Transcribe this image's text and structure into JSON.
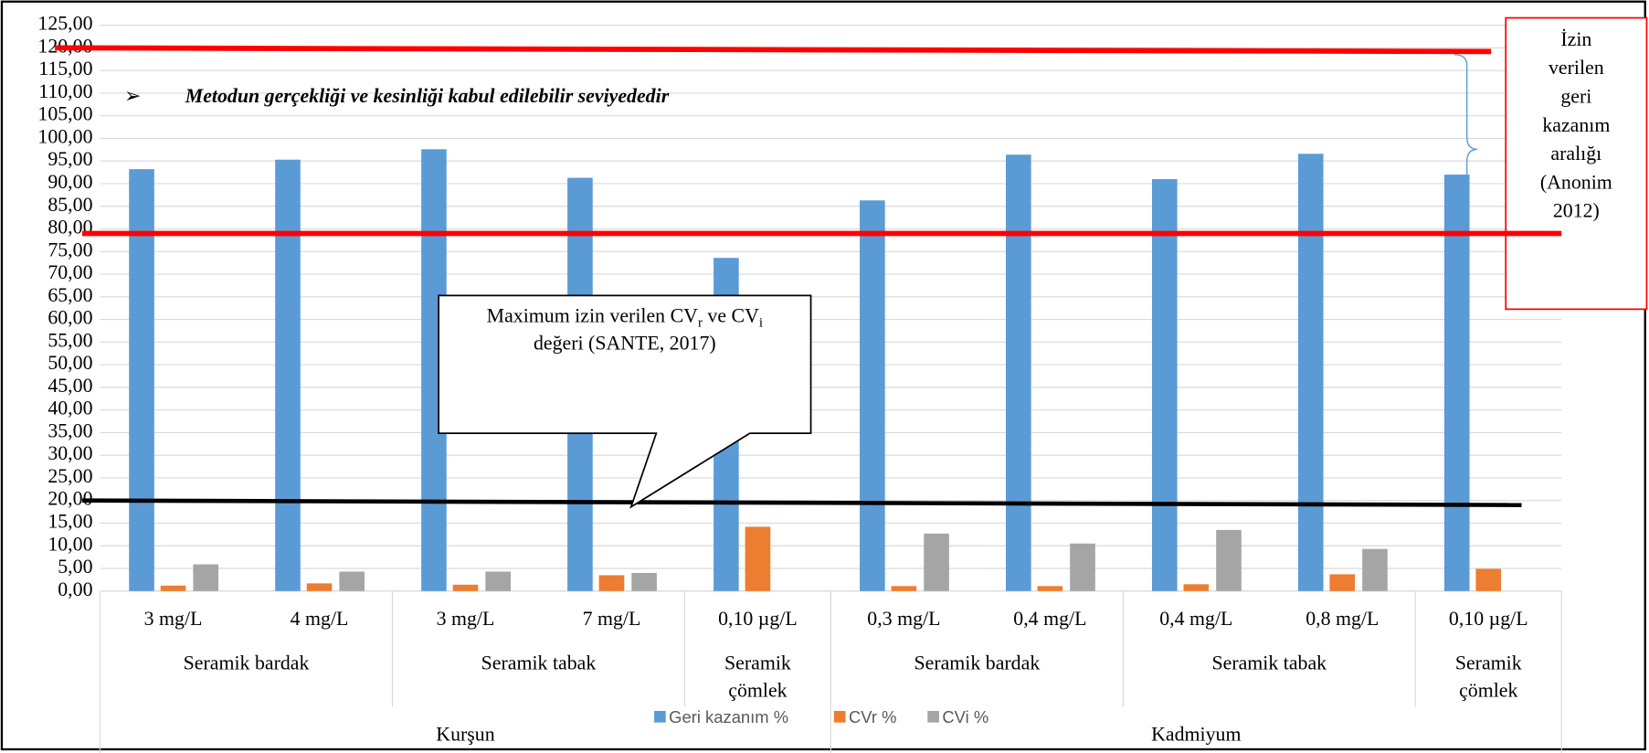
{
  "chart_data": {
    "type": "bar",
    "bullet": "➢",
    "subtitle": "Metodun gerçekliği ve kesinliği kabul edilebilir seviyededir",
    "callout": [
      [
        "Maximum izin verilen CV",
        {
          "sub": "r"
        },
        " ve CV",
        {
          "sub": "i"
        }
      ],
      [
        "değeri  (SANTE, 2017)"
      ]
    ],
    "side_note": [
      "İzin",
      "verilen",
      "geri",
      "kazanım",
      "aralığı",
      "(Anonim",
      "2012)"
    ],
    "category_groups": [
      {
        "name": "Kurşun",
        "groups": [
          {
            "name": "Seramik bardak",
            "categories": [
              "3 mg/L",
              "4 mg/L"
            ]
          },
          {
            "name": "Seramik tabak",
            "categories": [
              "3 mg/L",
              "7 mg/L"
            ]
          },
          {
            "name": "Seramik çömlek",
            "categories": [
              "0,10 µg/L"
            ]
          }
        ]
      },
      {
        "name": "Kadmiyum",
        "groups": [
          {
            "name": "Seramik bardak",
            "categories": [
              "0,3 mg/L",
              "0,4 mg/L"
            ]
          },
          {
            "name": "Seramik tabak",
            "categories": [
              "0,4 mg/L",
              "0,8 mg/L"
            ]
          },
          {
            "name": "Seramik çömlek",
            "categories": [
              "0,10 µg/L"
            ]
          }
        ]
      }
    ],
    "series": [
      {
        "name": "Geri kazanım %",
        "color": "#5b9bd5",
        "values": [
          93.2,
          95.3,
          97.6,
          91.3,
          73.6,
          86.3,
          96.4,
          91.0,
          96.6,
          92.0
        ]
      },
      {
        "name": "CVr %",
        "color": "#ed7d31",
        "values": [
          1.2,
          1.7,
          1.4,
          3.5,
          14.2,
          1.1,
          1.1,
          1.5,
          3.7,
          4.9
        ]
      },
      {
        "name": "CVi %",
        "color": "#a5a5a5",
        "values": [
          5.9,
          4.3,
          4.3,
          4.0,
          null,
          12.7,
          10.5,
          13.5,
          9.3,
          null
        ]
      }
    ],
    "reference_lines": [
      {
        "color": "#ff0000",
        "values": [
          120,
          119.2
        ]
      },
      {
        "color": "#ff0000",
        "values": [
          79,
          79
        ]
      },
      {
        "color": "#000000",
        "values": [
          20,
          19
        ]
      }
    ],
    "ylim": [
      0,
      125
    ],
    "yticks": [
      {
        "value": 0,
        "label": "0,00"
      },
      {
        "value": 5,
        "label": "5,00"
      },
      {
        "value": 10,
        "label": "10,00"
      },
      {
        "value": 15,
        "label": "15,00"
      },
      {
        "value": 20,
        "label": "20,00"
      },
      {
        "value": 25,
        "label": "25,00"
      },
      {
        "value": 30,
        "label": "30,00"
      },
      {
        "value": 35,
        "label": "35,00"
      },
      {
        "value": 40,
        "label": "40,00"
      },
      {
        "value": 45,
        "label": "45,00"
      },
      {
        "value": 50,
        "label": "50,00"
      },
      {
        "value": 55,
        "label": "55,00"
      },
      {
        "value": 60,
        "label": "60,00"
      },
      {
        "value": 65,
        "label": "65,00"
      },
      {
        "value": 70,
        "label": "70,00"
      },
      {
        "value": 75,
        "label": "75,00"
      },
      {
        "value": 80,
        "label": "80,00"
      },
      {
        "value": 85,
        "label": "85,00"
      },
      {
        "value": 90,
        "label": "90,00"
      },
      {
        "value": 95,
        "label": "95,00"
      },
      {
        "value": 100,
        "label": "100,00"
      },
      {
        "value": 105,
        "label": "105,00"
      },
      {
        "value": 110,
        "label": "110,00"
      },
      {
        "value": 115,
        "label": "115,00"
      },
      {
        "value": 120,
        "label": "120,00"
      },
      {
        "value": 125,
        "label": "125,00"
      }
    ],
    "grid": true,
    "legend": "bottom"
  }
}
